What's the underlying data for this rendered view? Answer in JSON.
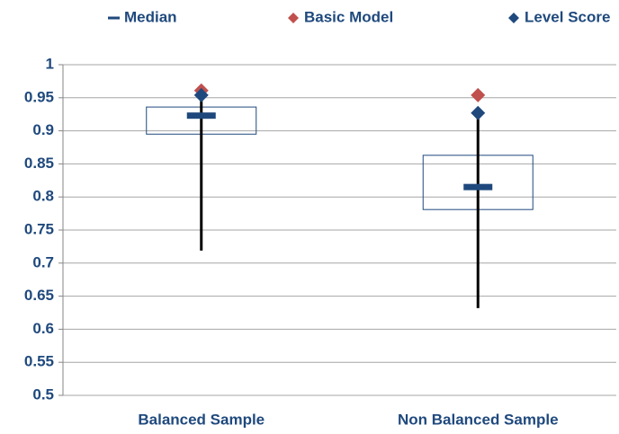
{
  "chart_data": {
    "type": "box",
    "categories": [
      "Balanced Sample",
      "Non Balanced Sample"
    ],
    "box": {
      "color": "#1f497d",
      "q1": [
        0.895,
        0.781
      ],
      "q3": [
        0.936,
        0.863
      ],
      "min": [
        0.719,
        0.632
      ],
      "max": [
        0.954,
        0.927
      ]
    },
    "series": [
      {
        "name": "Median",
        "color": "#1f497d",
        "marker": "dash",
        "values": [
          0.923,
          0.815
        ]
      },
      {
        "name": "Basic Model",
        "color": "#c0504d",
        "marker": "diamond",
        "values": [
          0.961,
          0.954
        ]
      },
      {
        "name": "Level Score",
        "color": "#1f497d",
        "marker": "diamond",
        "values": [
          0.954,
          0.927
        ]
      }
    ],
    "ylim": [
      0.5,
      1
    ],
    "yticks": [
      0.5,
      0.55,
      0.6,
      0.65,
      0.7,
      0.75,
      0.8,
      0.85,
      0.9,
      0.95,
      1
    ],
    "grid": true,
    "legend": "top"
  }
}
